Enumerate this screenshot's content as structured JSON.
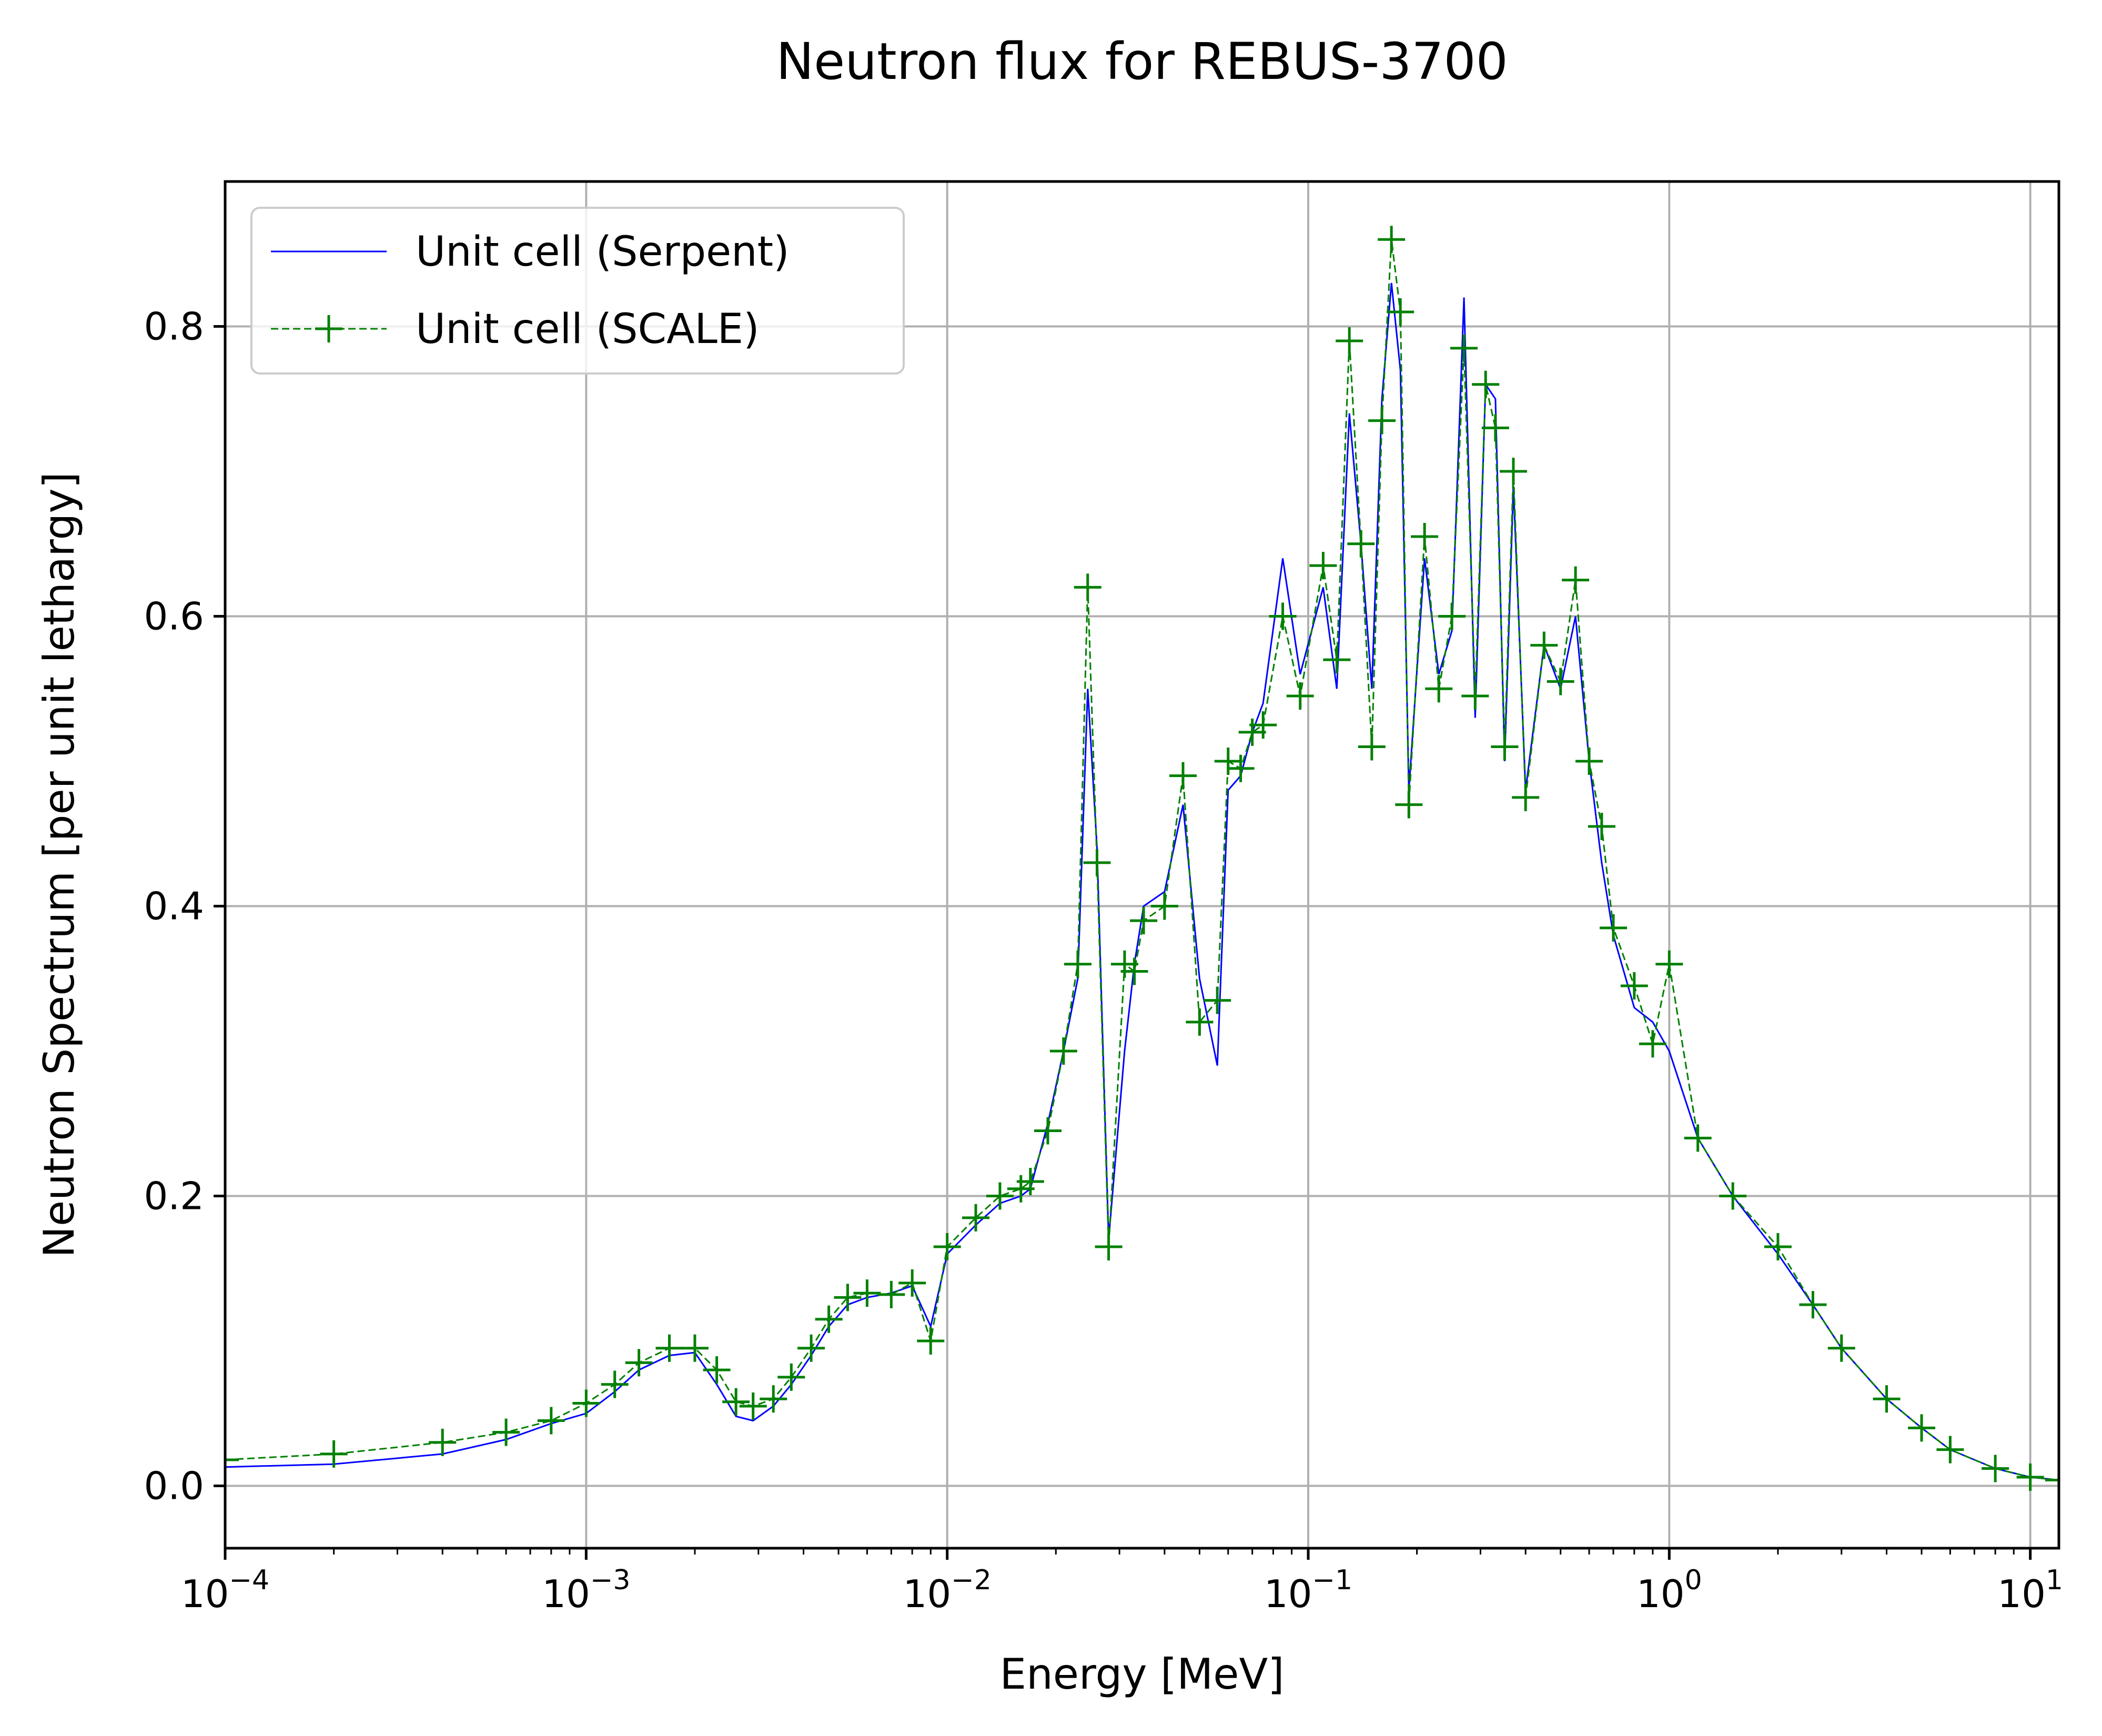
{
  "chart_data": {
    "type": "line",
    "title": "Neutron flux for REBUS-3700",
    "xlabel": "Energy [MeV]",
    "ylabel": "Neutron Spectrum [per unit lethargy]",
    "xscale": "log",
    "xlim": [
      0.0001,
      12
    ],
    "ylim": [
      -0.043,
      0.9
    ],
    "grid": true,
    "legend_position": "top-left",
    "x_ticks": [
      {
        "value": 0.0001,
        "base": "10",
        "exp": "−4"
      },
      {
        "value": 0.001,
        "base": "10",
        "exp": "−3"
      },
      {
        "value": 0.01,
        "base": "10",
        "exp": "−2"
      },
      {
        "value": 0.1,
        "base": "10",
        "exp": "−1"
      },
      {
        "value": 1,
        "base": "10",
        "exp": "0"
      },
      {
        "value": 10,
        "base": "10",
        "exp": "1"
      }
    ],
    "y_ticks": [
      {
        "value": 0.0,
        "label": "0.0"
      },
      {
        "value": 0.2,
        "label": "0.2"
      },
      {
        "value": 0.4,
        "label": "0.4"
      },
      {
        "value": 0.6,
        "label": "0.6"
      },
      {
        "value": 0.8,
        "label": "0.8"
      }
    ],
    "series": [
      {
        "name": "Unit cell (Serpent)",
        "color": "#0000ff",
        "style": "solid",
        "marker": "none",
        "points": [
          [
            0.0001,
            0.013
          ],
          [
            0.0002,
            0.015
          ],
          [
            0.0004,
            0.022
          ],
          [
            0.0006,
            0.032
          ],
          [
            0.0008,
            0.043
          ],
          [
            0.001,
            0.05
          ],
          [
            0.0012,
            0.065
          ],
          [
            0.0014,
            0.08
          ],
          [
            0.0017,
            0.09
          ],
          [
            0.002,
            0.092
          ],
          [
            0.0023,
            0.07
          ],
          [
            0.0026,
            0.048
          ],
          [
            0.0029,
            0.045
          ],
          [
            0.0033,
            0.055
          ],
          [
            0.0037,
            0.07
          ],
          [
            0.0042,
            0.09
          ],
          [
            0.0047,
            0.11
          ],
          [
            0.0053,
            0.125
          ],
          [
            0.006,
            0.13
          ],
          [
            0.007,
            0.133
          ],
          [
            0.008,
            0.138
          ],
          [
            0.009,
            0.11
          ],
          [
            0.01,
            0.16
          ],
          [
            0.012,
            0.18
          ],
          [
            0.014,
            0.195
          ],
          [
            0.016,
            0.2
          ],
          [
            0.017,
            0.205
          ],
          [
            0.019,
            0.25
          ],
          [
            0.021,
            0.3
          ],
          [
            0.023,
            0.35
          ],
          [
            0.0245,
            0.55
          ],
          [
            0.026,
            0.44
          ],
          [
            0.028,
            0.17
          ],
          [
            0.031,
            0.3
          ],
          [
            0.033,
            0.36
          ],
          [
            0.035,
            0.4
          ],
          [
            0.04,
            0.41
          ],
          [
            0.045,
            0.47
          ],
          [
            0.05,
            0.35
          ],
          [
            0.056,
            0.29
          ],
          [
            0.06,
            0.48
          ],
          [
            0.065,
            0.49
          ],
          [
            0.07,
            0.52
          ],
          [
            0.075,
            0.54
          ],
          [
            0.085,
            0.64
          ],
          [
            0.095,
            0.56
          ],
          [
            0.11,
            0.62
          ],
          [
            0.12,
            0.55
          ],
          [
            0.13,
            0.74
          ],
          [
            0.14,
            0.65
          ],
          [
            0.15,
            0.55
          ],
          [
            0.16,
            0.75
          ],
          [
            0.17,
            0.83
          ],
          [
            0.18,
            0.77
          ],
          [
            0.19,
            0.48
          ],
          [
            0.21,
            0.64
          ],
          [
            0.23,
            0.56
          ],
          [
            0.25,
            0.59
          ],
          [
            0.27,
            0.82
          ],
          [
            0.29,
            0.53
          ],
          [
            0.31,
            0.76
          ],
          [
            0.33,
            0.75
          ],
          [
            0.35,
            0.5
          ],
          [
            0.37,
            0.69
          ],
          [
            0.4,
            0.48
          ],
          [
            0.45,
            0.58
          ],
          [
            0.5,
            0.55
          ],
          [
            0.55,
            0.6
          ],
          [
            0.6,
            0.5
          ],
          [
            0.65,
            0.43
          ],
          [
            0.7,
            0.38
          ],
          [
            0.8,
            0.33
          ],
          [
            0.9,
            0.32
          ],
          [
            1.0,
            0.3
          ],
          [
            1.2,
            0.24
          ],
          [
            1.5,
            0.2
          ],
          [
            2.0,
            0.16
          ],
          [
            2.5,
            0.125
          ],
          [
            3.0,
            0.095
          ],
          [
            4.0,
            0.06
          ],
          [
            5.0,
            0.04
          ],
          [
            6.0,
            0.025
          ],
          [
            8.0,
            0.012
          ],
          [
            10.0,
            0.006
          ],
          [
            12.0,
            0.004
          ]
        ]
      },
      {
        "name": "Unit cell (SCALE)",
        "color": "#008000",
        "style": "dashed",
        "marker": "plus",
        "points": [
          [
            0.0001,
            0.018
          ],
          [
            0.0002,
            0.022
          ],
          [
            0.0004,
            0.03
          ],
          [
            0.0006,
            0.037
          ],
          [
            0.0008,
            0.045
          ],
          [
            0.001,
            0.057
          ],
          [
            0.0012,
            0.07
          ],
          [
            0.0014,
            0.085
          ],
          [
            0.0017,
            0.095
          ],
          [
            0.002,
            0.095
          ],
          [
            0.0023,
            0.08
          ],
          [
            0.0026,
            0.058
          ],
          [
            0.0029,
            0.055
          ],
          [
            0.0033,
            0.06
          ],
          [
            0.0037,
            0.075
          ],
          [
            0.0042,
            0.095
          ],
          [
            0.0047,
            0.115
          ],
          [
            0.0053,
            0.13
          ],
          [
            0.006,
            0.133
          ],
          [
            0.007,
            0.132
          ],
          [
            0.008,
            0.14
          ],
          [
            0.009,
            0.1
          ],
          [
            0.01,
            0.165
          ],
          [
            0.012,
            0.185
          ],
          [
            0.014,
            0.2
          ],
          [
            0.016,
            0.205
          ],
          [
            0.017,
            0.21
          ],
          [
            0.019,
            0.245
          ],
          [
            0.021,
            0.3
          ],
          [
            0.023,
            0.36
          ],
          [
            0.0245,
            0.62
          ],
          [
            0.026,
            0.43
          ],
          [
            0.028,
            0.165
          ],
          [
            0.031,
            0.36
          ],
          [
            0.033,
            0.355
          ],
          [
            0.035,
            0.39
          ],
          [
            0.04,
            0.4
          ],
          [
            0.045,
            0.49
          ],
          [
            0.05,
            0.32
          ],
          [
            0.056,
            0.335
          ],
          [
            0.06,
            0.5
          ],
          [
            0.065,
            0.495
          ],
          [
            0.07,
            0.52
          ],
          [
            0.075,
            0.525
          ],
          [
            0.085,
            0.6
          ],
          [
            0.095,
            0.545
          ],
          [
            0.11,
            0.635
          ],
          [
            0.12,
            0.57
          ],
          [
            0.13,
            0.79
          ],
          [
            0.14,
            0.65
          ],
          [
            0.15,
            0.51
          ],
          [
            0.16,
            0.735
          ],
          [
            0.17,
            0.86
          ],
          [
            0.18,
            0.81
          ],
          [
            0.19,
            0.47
          ],
          [
            0.21,
            0.655
          ],
          [
            0.23,
            0.55
          ],
          [
            0.25,
            0.6
          ],
          [
            0.27,
            0.785
          ],
          [
            0.29,
            0.545
          ],
          [
            0.31,
            0.76
          ],
          [
            0.33,
            0.73
          ],
          [
            0.35,
            0.51
          ],
          [
            0.37,
            0.7
          ],
          [
            0.4,
            0.475
          ],
          [
            0.45,
            0.58
          ],
          [
            0.5,
            0.555
          ],
          [
            0.55,
            0.625
          ],
          [
            0.6,
            0.5
          ],
          [
            0.65,
            0.455
          ],
          [
            0.7,
            0.385
          ],
          [
            0.8,
            0.345
          ],
          [
            0.9,
            0.305
          ],
          [
            1.0,
            0.36
          ],
          [
            1.2,
            0.24
          ],
          [
            1.5,
            0.2
          ],
          [
            2.0,
            0.165
          ],
          [
            2.5,
            0.125
          ],
          [
            3.0,
            0.095
          ],
          [
            4.0,
            0.06
          ],
          [
            5.0,
            0.04
          ],
          [
            6.0,
            0.025
          ],
          [
            8.0,
            0.012
          ],
          [
            10.0,
            0.006
          ],
          [
            12.0,
            0.004
          ]
        ]
      }
    ]
  }
}
